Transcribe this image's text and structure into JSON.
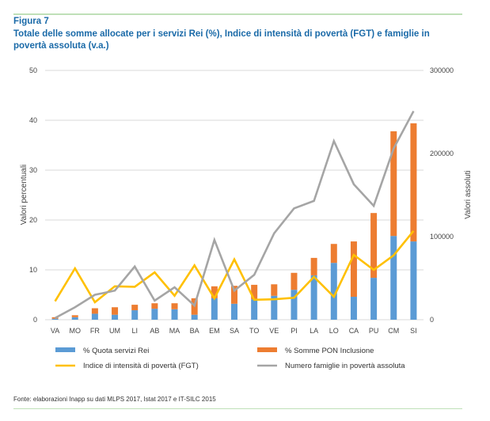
{
  "header": {
    "figure_label": "Figura 7",
    "title": "Totale delle somme allocate per i servizi Rei (%), Indice di intensità di povertà (FGT) e famiglie in povertà assoluta (v.a.)"
  },
  "footer": {
    "source": "Fonte: elaborazioni Inapp su dati MLPS 2017, Istat 2017 e IT-SILC 2015"
  },
  "colors": {
    "blue": "#5b9bd5",
    "orange": "#ed7d31",
    "yellow": "#ffc000",
    "gray": "#a5a5a5",
    "title": "#1a6aa8",
    "grid": "#d9d9d9"
  },
  "chart_data": {
    "type": "bar",
    "subtype": "stacked bar with line overlays, dual axis",
    "categories": [
      "VA",
      "MO",
      "FR",
      "UM",
      "LI",
      "AB",
      "MA",
      "BA",
      "EM",
      "SA",
      "TO",
      "VE",
      "PI",
      "LA",
      "LO",
      "CA",
      "PU",
      "CM",
      "SI"
    ],
    "ylabel": "Valori percentuali",
    "y2label": "Valori assoluti",
    "ylim": [
      0,
      50
    ],
    "yticks": [
      "0",
      "10",
      "20",
      "30",
      "40",
      "50"
    ],
    "y2lim": [
      0,
      300000
    ],
    "y2ticks": [
      "0",
      "100000",
      "200000",
      "300000"
    ],
    "grid": true,
    "legend_position": "bottom",
    "series": [
      {
        "name": "% Quota servizi Rei",
        "type": "bar",
        "stack": "a",
        "axis": "left",
        "color_key": "blue",
        "values": [
          0.2,
          0.5,
          1.2,
          1.0,
          1.9,
          2.2,
          2.1,
          1.0,
          4.3,
          3.2,
          4.1,
          4.8,
          6.0,
          8.9,
          11.4,
          4.6,
          8.4,
          16.8,
          15.7
        ]
      },
      {
        "name": "% Somme PON Inclusione",
        "type": "bar",
        "stack": "a",
        "axis": "left",
        "color_key": "orange",
        "values": [
          0.3,
          0.4,
          1.1,
          1.5,
          1.1,
          1.1,
          1.2,
          3.3,
          2.4,
          3.6,
          2.9,
          2.3,
          3.4,
          3.5,
          3.8,
          11.1,
          13.0,
          21.0,
          23.7
        ]
      },
      {
        "name": "Indice di intensità di povertà (FGT)",
        "type": "line",
        "axis": "left",
        "color_key": "yellow",
        "values": [
          3.7,
          10.3,
          3.5,
          6.7,
          6.6,
          9.5,
          4.8,
          10.9,
          4.3,
          12.1,
          4.0,
          4.1,
          4.4,
          8.6,
          4.6,
          13.0,
          10.0,
          12.9,
          17.8
        ]
      },
      {
        "name": "Numero famiglie in povertà assoluta",
        "type": "line",
        "axis": "right",
        "color_key": "gray",
        "values": [
          2000,
          15000,
          30000,
          35000,
          64000,
          23000,
          39000,
          17000,
          96000,
          35000,
          54000,
          104000,
          134000,
          143000,
          215000,
          163000,
          137000,
          206000,
          251000
        ]
      }
    ]
  }
}
